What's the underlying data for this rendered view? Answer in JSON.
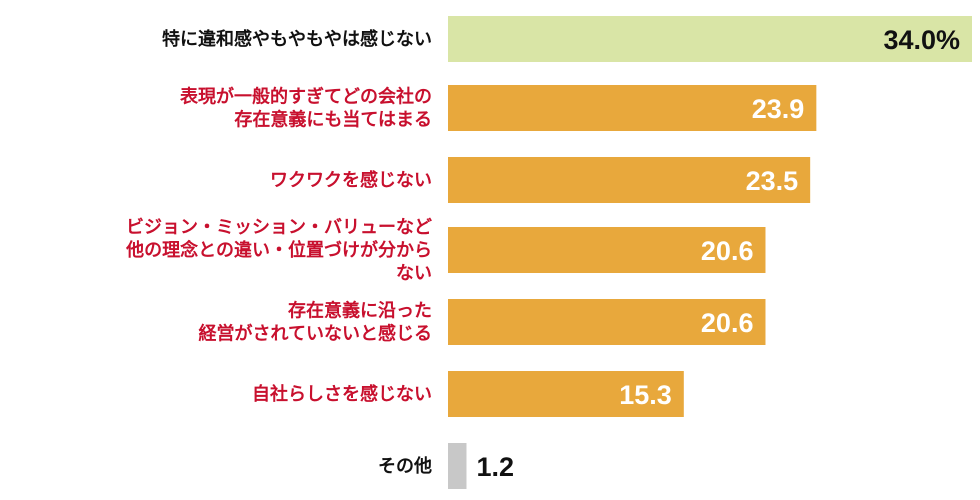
{
  "chart_data": {
    "type": "bar",
    "orientation": "horizontal",
    "categories": [
      [
        "特に違和感やもやもやは感じない"
      ],
      [
        "表現が一般的すぎてどの会社の",
        "存在意義にも当てはまる"
      ],
      [
        "ワクワクを感じない"
      ],
      [
        "ビジョン・ミッション・バリューなど",
        "他の理念との違い・位置づけが分から",
        "ない"
      ],
      [
        "存在意義に沿った",
        "経営がされていないと感じる"
      ],
      [
        "自社らしさを感じない"
      ],
      [
        "その他"
      ]
    ],
    "values": [
      34.0,
      23.9,
      23.5,
      20.6,
      20.6,
      15.3,
      1.2
    ],
    "value_labels": [
      "34.0%",
      "23.9",
      "23.5",
      "20.6",
      "20.6",
      "15.3",
      "1.2"
    ],
    "xlim": [
      0,
      34.0
    ],
    "grid": false,
    "colors": {
      "highlight_bar": "#d9e5a6",
      "main_bar": "#e8a83c",
      "other_bar": "#c8c8c8",
      "label_black": "#111111",
      "label_red": "#c8102e",
      "value_on_light": "#111111",
      "value_on_bar": "#ffffff"
    },
    "bar_color_keys": [
      "highlight_bar",
      "main_bar",
      "main_bar",
      "main_bar",
      "main_bar",
      "main_bar",
      "other_bar"
    ],
    "label_color_keys": [
      "label_black",
      "label_red",
      "label_red",
      "label_red",
      "label_red",
      "label_red",
      "label_black"
    ],
    "value_color_keys": [
      "value_on_light",
      "value_on_bar",
      "value_on_bar",
      "value_on_bar",
      "value_on_bar",
      "value_on_bar",
      "value_on_light"
    ]
  }
}
